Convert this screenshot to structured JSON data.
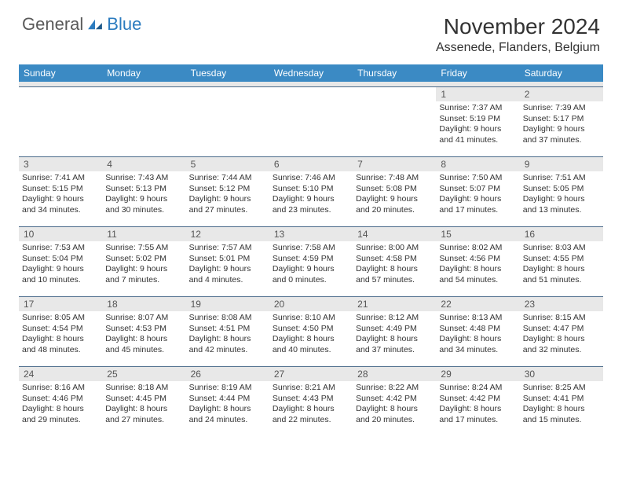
{
  "logo": {
    "general": "General",
    "blue": "Blue"
  },
  "title": "November 2024",
  "location": "Assenede, Flanders, Belgium",
  "colors": {
    "header_bg": "#3b8ac4",
    "header_text": "#ffffff",
    "day_num_bg": "#e8e8e8",
    "day_num_text": "#555555",
    "body_text": "#333333",
    "rule": "#4a6a8a",
    "logo_gray": "#5a5a5a",
    "logo_blue": "#2b7bbf"
  },
  "day_names": [
    "Sunday",
    "Monday",
    "Tuesday",
    "Wednesday",
    "Thursday",
    "Friday",
    "Saturday"
  ],
  "weeks": [
    [
      {
        "n": "",
        "sr": "",
        "ss": "",
        "dl": ""
      },
      {
        "n": "",
        "sr": "",
        "ss": "",
        "dl": ""
      },
      {
        "n": "",
        "sr": "",
        "ss": "",
        "dl": ""
      },
      {
        "n": "",
        "sr": "",
        "ss": "",
        "dl": ""
      },
      {
        "n": "",
        "sr": "",
        "ss": "",
        "dl": ""
      },
      {
        "n": "1",
        "sr": "Sunrise: 7:37 AM",
        "ss": "Sunset: 5:19 PM",
        "dl": "Daylight: 9 hours and 41 minutes."
      },
      {
        "n": "2",
        "sr": "Sunrise: 7:39 AM",
        "ss": "Sunset: 5:17 PM",
        "dl": "Daylight: 9 hours and 37 minutes."
      }
    ],
    [
      {
        "n": "3",
        "sr": "Sunrise: 7:41 AM",
        "ss": "Sunset: 5:15 PM",
        "dl": "Daylight: 9 hours and 34 minutes."
      },
      {
        "n": "4",
        "sr": "Sunrise: 7:43 AM",
        "ss": "Sunset: 5:13 PM",
        "dl": "Daylight: 9 hours and 30 minutes."
      },
      {
        "n": "5",
        "sr": "Sunrise: 7:44 AM",
        "ss": "Sunset: 5:12 PM",
        "dl": "Daylight: 9 hours and 27 minutes."
      },
      {
        "n": "6",
        "sr": "Sunrise: 7:46 AM",
        "ss": "Sunset: 5:10 PM",
        "dl": "Daylight: 9 hours and 23 minutes."
      },
      {
        "n": "7",
        "sr": "Sunrise: 7:48 AM",
        "ss": "Sunset: 5:08 PM",
        "dl": "Daylight: 9 hours and 20 minutes."
      },
      {
        "n": "8",
        "sr": "Sunrise: 7:50 AM",
        "ss": "Sunset: 5:07 PM",
        "dl": "Daylight: 9 hours and 17 minutes."
      },
      {
        "n": "9",
        "sr": "Sunrise: 7:51 AM",
        "ss": "Sunset: 5:05 PM",
        "dl": "Daylight: 9 hours and 13 minutes."
      }
    ],
    [
      {
        "n": "10",
        "sr": "Sunrise: 7:53 AM",
        "ss": "Sunset: 5:04 PM",
        "dl": "Daylight: 9 hours and 10 minutes."
      },
      {
        "n": "11",
        "sr": "Sunrise: 7:55 AM",
        "ss": "Sunset: 5:02 PM",
        "dl": "Daylight: 9 hours and 7 minutes."
      },
      {
        "n": "12",
        "sr": "Sunrise: 7:57 AM",
        "ss": "Sunset: 5:01 PM",
        "dl": "Daylight: 9 hours and 4 minutes."
      },
      {
        "n": "13",
        "sr": "Sunrise: 7:58 AM",
        "ss": "Sunset: 4:59 PM",
        "dl": "Daylight: 9 hours and 0 minutes."
      },
      {
        "n": "14",
        "sr": "Sunrise: 8:00 AM",
        "ss": "Sunset: 4:58 PM",
        "dl": "Daylight: 8 hours and 57 minutes."
      },
      {
        "n": "15",
        "sr": "Sunrise: 8:02 AM",
        "ss": "Sunset: 4:56 PM",
        "dl": "Daylight: 8 hours and 54 minutes."
      },
      {
        "n": "16",
        "sr": "Sunrise: 8:03 AM",
        "ss": "Sunset: 4:55 PM",
        "dl": "Daylight: 8 hours and 51 minutes."
      }
    ],
    [
      {
        "n": "17",
        "sr": "Sunrise: 8:05 AM",
        "ss": "Sunset: 4:54 PM",
        "dl": "Daylight: 8 hours and 48 minutes."
      },
      {
        "n": "18",
        "sr": "Sunrise: 8:07 AM",
        "ss": "Sunset: 4:53 PM",
        "dl": "Daylight: 8 hours and 45 minutes."
      },
      {
        "n": "19",
        "sr": "Sunrise: 8:08 AM",
        "ss": "Sunset: 4:51 PM",
        "dl": "Daylight: 8 hours and 42 minutes."
      },
      {
        "n": "20",
        "sr": "Sunrise: 8:10 AM",
        "ss": "Sunset: 4:50 PM",
        "dl": "Daylight: 8 hours and 40 minutes."
      },
      {
        "n": "21",
        "sr": "Sunrise: 8:12 AM",
        "ss": "Sunset: 4:49 PM",
        "dl": "Daylight: 8 hours and 37 minutes."
      },
      {
        "n": "22",
        "sr": "Sunrise: 8:13 AM",
        "ss": "Sunset: 4:48 PM",
        "dl": "Daylight: 8 hours and 34 minutes."
      },
      {
        "n": "23",
        "sr": "Sunrise: 8:15 AM",
        "ss": "Sunset: 4:47 PM",
        "dl": "Daylight: 8 hours and 32 minutes."
      }
    ],
    [
      {
        "n": "24",
        "sr": "Sunrise: 8:16 AM",
        "ss": "Sunset: 4:46 PM",
        "dl": "Daylight: 8 hours and 29 minutes."
      },
      {
        "n": "25",
        "sr": "Sunrise: 8:18 AM",
        "ss": "Sunset: 4:45 PM",
        "dl": "Daylight: 8 hours and 27 minutes."
      },
      {
        "n": "26",
        "sr": "Sunrise: 8:19 AM",
        "ss": "Sunset: 4:44 PM",
        "dl": "Daylight: 8 hours and 24 minutes."
      },
      {
        "n": "27",
        "sr": "Sunrise: 8:21 AM",
        "ss": "Sunset: 4:43 PM",
        "dl": "Daylight: 8 hours and 22 minutes."
      },
      {
        "n": "28",
        "sr": "Sunrise: 8:22 AM",
        "ss": "Sunset: 4:42 PM",
        "dl": "Daylight: 8 hours and 20 minutes."
      },
      {
        "n": "29",
        "sr": "Sunrise: 8:24 AM",
        "ss": "Sunset: 4:42 PM",
        "dl": "Daylight: 8 hours and 17 minutes."
      },
      {
        "n": "30",
        "sr": "Sunrise: 8:25 AM",
        "ss": "Sunset: 4:41 PM",
        "dl": "Daylight: 8 hours and 15 minutes."
      }
    ]
  ]
}
